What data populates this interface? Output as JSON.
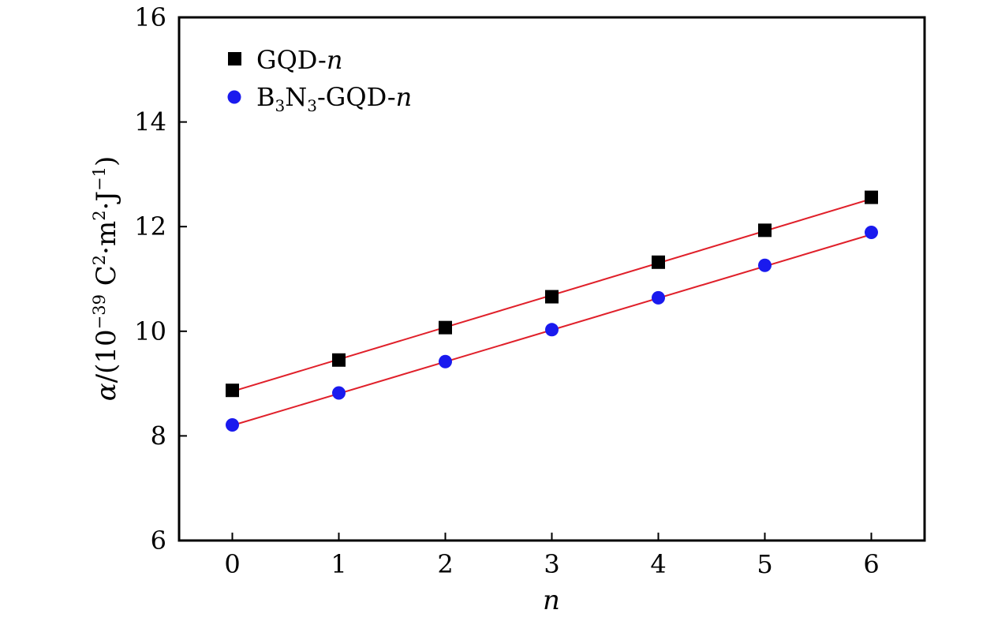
{
  "chart_data": {
    "type": "scatter",
    "xlabel": "n",
    "ylabel": {
      "symbol": "α",
      "open": "/(10",
      "exp1": "−39",
      "unit_c": " C",
      "exp2": "2",
      "unit_m": "·m",
      "exp3": "2",
      "unit_j": "·J",
      "exp4": "−1",
      "close": ")"
    },
    "xlim": [
      -0.5,
      6.5
    ],
    "ylim": [
      6,
      16
    ],
    "x_ticks": [
      0,
      1,
      2,
      3,
      4,
      5,
      6
    ],
    "y_ticks": [
      6,
      8,
      10,
      12,
      14,
      16
    ],
    "grid": false,
    "legend_position": "top-left",
    "series": [
      {
        "name": "GQD-n",
        "legend": {
          "main": "GQD-",
          "var": "n"
        },
        "marker": "square",
        "color": "#000000",
        "x": [
          0,
          1,
          2,
          3,
          4,
          5,
          6
        ],
        "y": [
          8.87,
          9.45,
          10.07,
          10.66,
          11.32,
          11.93,
          12.56
        ],
        "fit": {
          "x": [
            0,
            6
          ],
          "y": [
            8.85,
            12.53
          ],
          "color": "#e0202a"
        }
      },
      {
        "name": "B3N3-GQD-n",
        "legend": {
          "b": "B",
          "sub1": "3",
          "n": "N",
          "sub2": "3",
          "rest": "-GQD-",
          "var": "n"
        },
        "marker": "circle",
        "color": "#1a1aee",
        "x": [
          0,
          1,
          2,
          3,
          4,
          5,
          6
        ],
        "y": [
          8.21,
          8.82,
          9.42,
          10.03,
          10.64,
          11.26,
          11.89
        ],
        "fit": {
          "x": [
            0,
            6
          ],
          "y": [
            8.2,
            11.85
          ],
          "color": "#e0202a"
        }
      }
    ]
  }
}
